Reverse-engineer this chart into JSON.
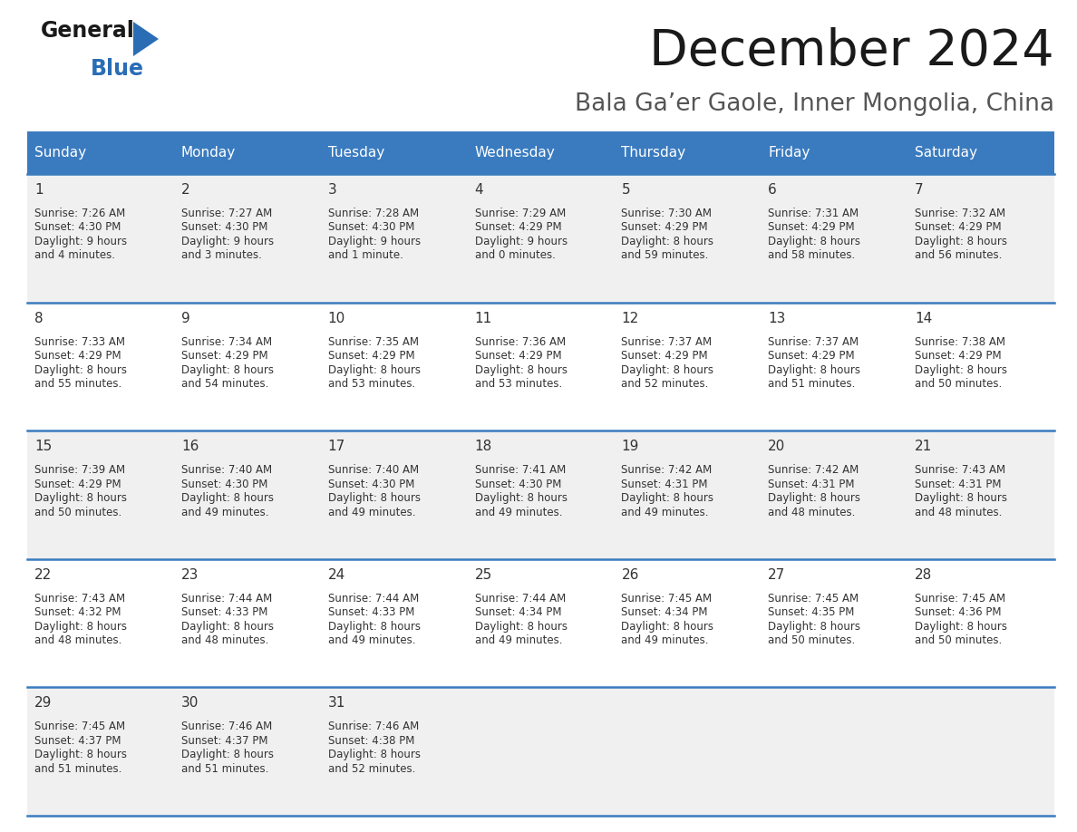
{
  "title": "December 2024",
  "subtitle": "Bala Ga’er Gaole, Inner Mongolia, China",
  "header_bg_color": "#3a7bbf",
  "header_text_color": "#ffffff",
  "row_bg_odd": "#f0f0f0",
  "row_bg_even": "#ffffff",
  "grid_line_color": "#3a7bbf",
  "days_of_week": [
    "Sunday",
    "Monday",
    "Tuesday",
    "Wednesday",
    "Thursday",
    "Friday",
    "Saturday"
  ],
  "day_name_fontsize": 11,
  "cell_day_fontsize": 11,
  "cell_info_fontsize": 8.5,
  "calendar": [
    [
      {
        "day": "1",
        "sunrise": "7:26 AM",
        "sunset": "4:30 PM",
        "daylight_line1": "9 hours",
        "daylight_line2": "and 4 minutes."
      },
      {
        "day": "2",
        "sunrise": "7:27 AM",
        "sunset": "4:30 PM",
        "daylight_line1": "9 hours",
        "daylight_line2": "and 3 minutes."
      },
      {
        "day": "3",
        "sunrise": "7:28 AM",
        "sunset": "4:30 PM",
        "daylight_line1": "9 hours",
        "daylight_line2": "and 1 minute."
      },
      {
        "day": "4",
        "sunrise": "7:29 AM",
        "sunset": "4:29 PM",
        "daylight_line1": "9 hours",
        "daylight_line2": "and 0 minutes."
      },
      {
        "day": "5",
        "sunrise": "7:30 AM",
        "sunset": "4:29 PM",
        "daylight_line1": "8 hours",
        "daylight_line2": "and 59 minutes."
      },
      {
        "day": "6",
        "sunrise": "7:31 AM",
        "sunset": "4:29 PM",
        "daylight_line1": "8 hours",
        "daylight_line2": "and 58 minutes."
      },
      {
        "day": "7",
        "sunrise": "7:32 AM",
        "sunset": "4:29 PM",
        "daylight_line1": "8 hours",
        "daylight_line2": "and 56 minutes."
      }
    ],
    [
      {
        "day": "8",
        "sunrise": "7:33 AM",
        "sunset": "4:29 PM",
        "daylight_line1": "8 hours",
        "daylight_line2": "and 55 minutes."
      },
      {
        "day": "9",
        "sunrise": "7:34 AM",
        "sunset": "4:29 PM",
        "daylight_line1": "8 hours",
        "daylight_line2": "and 54 minutes."
      },
      {
        "day": "10",
        "sunrise": "7:35 AM",
        "sunset": "4:29 PM",
        "daylight_line1": "8 hours",
        "daylight_line2": "and 53 minutes."
      },
      {
        "day": "11",
        "sunrise": "7:36 AM",
        "sunset": "4:29 PM",
        "daylight_line1": "8 hours",
        "daylight_line2": "and 53 minutes."
      },
      {
        "day": "12",
        "sunrise": "7:37 AM",
        "sunset": "4:29 PM",
        "daylight_line1": "8 hours",
        "daylight_line2": "and 52 minutes."
      },
      {
        "day": "13",
        "sunrise": "7:37 AM",
        "sunset": "4:29 PM",
        "daylight_line1": "8 hours",
        "daylight_line2": "and 51 minutes."
      },
      {
        "day": "14",
        "sunrise": "7:38 AM",
        "sunset": "4:29 PM",
        "daylight_line1": "8 hours",
        "daylight_line2": "and 50 minutes."
      }
    ],
    [
      {
        "day": "15",
        "sunrise": "7:39 AM",
        "sunset": "4:29 PM",
        "daylight_line1": "8 hours",
        "daylight_line2": "and 50 minutes."
      },
      {
        "day": "16",
        "sunrise": "7:40 AM",
        "sunset": "4:30 PM",
        "daylight_line1": "8 hours",
        "daylight_line2": "and 49 minutes."
      },
      {
        "day": "17",
        "sunrise": "7:40 AM",
        "sunset": "4:30 PM",
        "daylight_line1": "8 hours",
        "daylight_line2": "and 49 minutes."
      },
      {
        "day": "18",
        "sunrise": "7:41 AM",
        "sunset": "4:30 PM",
        "daylight_line1": "8 hours",
        "daylight_line2": "and 49 minutes."
      },
      {
        "day": "19",
        "sunrise": "7:42 AM",
        "sunset": "4:31 PM",
        "daylight_line1": "8 hours",
        "daylight_line2": "and 49 minutes."
      },
      {
        "day": "20",
        "sunrise": "7:42 AM",
        "sunset": "4:31 PM",
        "daylight_line1": "8 hours",
        "daylight_line2": "and 48 minutes."
      },
      {
        "day": "21",
        "sunrise": "7:43 AM",
        "sunset": "4:31 PM",
        "daylight_line1": "8 hours",
        "daylight_line2": "and 48 minutes."
      }
    ],
    [
      {
        "day": "22",
        "sunrise": "7:43 AM",
        "sunset": "4:32 PM",
        "daylight_line1": "8 hours",
        "daylight_line2": "and 48 minutes."
      },
      {
        "day": "23",
        "sunrise": "7:44 AM",
        "sunset": "4:33 PM",
        "daylight_line1": "8 hours",
        "daylight_line2": "and 48 minutes."
      },
      {
        "day": "24",
        "sunrise": "7:44 AM",
        "sunset": "4:33 PM",
        "daylight_line1": "8 hours",
        "daylight_line2": "and 49 minutes."
      },
      {
        "day": "25",
        "sunrise": "7:44 AM",
        "sunset": "4:34 PM",
        "daylight_line1": "8 hours",
        "daylight_line2": "and 49 minutes."
      },
      {
        "day": "26",
        "sunrise": "7:45 AM",
        "sunset": "4:34 PM",
        "daylight_line1": "8 hours",
        "daylight_line2": "and 49 minutes."
      },
      {
        "day": "27",
        "sunrise": "7:45 AM",
        "sunset": "4:35 PM",
        "daylight_line1": "8 hours",
        "daylight_line2": "and 50 minutes."
      },
      {
        "day": "28",
        "sunrise": "7:45 AM",
        "sunset": "4:36 PM",
        "daylight_line1": "8 hours",
        "daylight_line2": "and 50 minutes."
      }
    ],
    [
      {
        "day": "29",
        "sunrise": "7:45 AM",
        "sunset": "4:37 PM",
        "daylight_line1": "8 hours",
        "daylight_line2": "and 51 minutes."
      },
      {
        "day": "30",
        "sunrise": "7:46 AM",
        "sunset": "4:37 PM",
        "daylight_line1": "8 hours",
        "daylight_line2": "and 51 minutes."
      },
      {
        "day": "31",
        "sunrise": "7:46 AM",
        "sunset": "4:38 PM",
        "daylight_line1": "8 hours",
        "daylight_line2": "and 52 minutes."
      },
      null,
      null,
      null,
      null
    ]
  ],
  "logo_general_color": "#1a1a1a",
  "logo_blue_color": "#2a6db5",
  "fig_width": 11.88,
  "fig_height": 9.18,
  "dpi": 100
}
